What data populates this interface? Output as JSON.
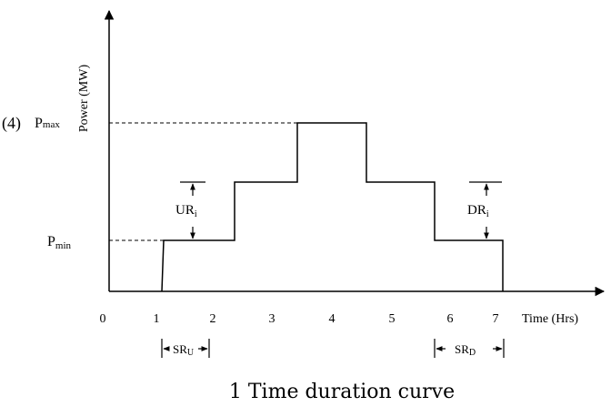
{
  "diagram": {
    "equation_number": "(4)",
    "y_axis_label": "Power (MW)",
    "x_axis_label": "Time (Hrs)",
    "x_ticks": [
      "0",
      "1",
      "2",
      "3",
      "4",
      "5",
      "6",
      "7"
    ],
    "pmax_label": {
      "base": "P",
      "sub": "max"
    },
    "pmin_label": {
      "base": "P",
      "sub": "min"
    },
    "ramp_up_label": {
      "base": "UR",
      "sub": "i"
    },
    "ramp_down_label": {
      "base": "DR",
      "sub": "i"
    },
    "startup_label": {
      "base": "SR",
      "sub": "U"
    },
    "shutdown_label": {
      "base": "SR",
      "sub": "D"
    },
    "caption": "1 Time duration curve",
    "line_color": "#000000"
  },
  "chart_data": {
    "type": "line",
    "series": [
      {
        "x": [
          1.12,
          1.15,
          2.35,
          2.35,
          3.4,
          3.4,
          4.55,
          4.55,
          5.7,
          5.7,
          7.0,
          7.0
        ],
        "y": [
          "0",
          "Pmin",
          "Pmin",
          "level-2",
          "level-2",
          "Pmax",
          "Pmax",
          "level-2",
          "level-2",
          "Pmin",
          "Pmin",
          "0"
        ]
      }
    ]
  }
}
